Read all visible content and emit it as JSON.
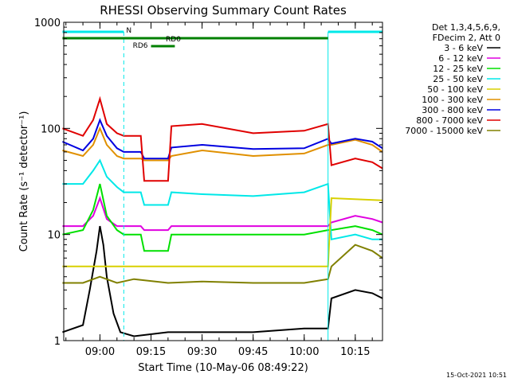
{
  "chart_data": {
    "type": "line",
    "title": "RHESSI Observing Summary Count Rates",
    "xlabel": "Start Time (10-May-06 08:49:22)",
    "ylabel": "Count Rate (s⁻¹ detector⁻¹)",
    "y_scale": "log",
    "ylim": [
      1,
      1000
    ],
    "xlim": [
      "08:49:22",
      "10:23:00"
    ],
    "x_ticks": [
      "09:00",
      "09:15",
      "09:30",
      "09:45",
      "10:00",
      "10:15"
    ],
    "y_ticks": [
      "1",
      "10",
      "100",
      "1000"
    ],
    "legend_header": [
      "Det 1,3,4,5,6,9,",
      "FDecim 2, Att 0"
    ],
    "legend_position": "right",
    "series": [
      {
        "name": "3 - 6 keV",
        "color": "#000000",
        "x": [
          "08:49",
          "08:55",
          "08:57",
          "08:59",
          "09:00",
          "09:01",
          "09:02",
          "09:04",
          "09:06",
          "09:10",
          "09:20",
          "09:30",
          "09:45",
          "10:00",
          "10:07",
          "10:08",
          "10:15",
          "10:20",
          "10:23"
        ],
        "y": [
          1.2,
          1.4,
          3.0,
          7.0,
          12,
          8.0,
          4.0,
          1.8,
          1.2,
          1.1,
          1.2,
          1.2,
          1.2,
          1.3,
          1.3,
          2.5,
          3.0,
          2.8,
          2.5
        ]
      },
      {
        "name": "6 - 12 keV",
        "color": "#e000e0",
        "x": [
          "08:49",
          "08:55",
          "08:58",
          "09:00",
          "09:02",
          "09:05",
          "09:07",
          "09:12",
          "09:13",
          "09:20",
          "09:21",
          "09:30",
          "09:45",
          "10:00",
          "10:07",
          "10:08",
          "10:15",
          "10:20",
          "10:23"
        ],
        "y": [
          12,
          12,
          15,
          22,
          14,
          12,
          12,
          12,
          11,
          11,
          12,
          12,
          12,
          12,
          12,
          13,
          15,
          14,
          13
        ]
      },
      {
        "name": "12 - 25 keV",
        "color": "#00e000",
        "x": [
          "08:49",
          "08:55",
          "08:58",
          "09:00",
          "09:02",
          "09:05",
          "09:07",
          "09:12",
          "09:13",
          "09:20",
          "09:21",
          "09:30",
          "09:45",
          "10:00",
          "10:07",
          "10:08",
          "10:15",
          "10:20",
          "10:23"
        ],
        "y": [
          10,
          11,
          17,
          30,
          15,
          11,
          10,
          10,
          7,
          7,
          10,
          10,
          10,
          10,
          11,
          11,
          12,
          11,
          10
        ]
      },
      {
        "name": "25 - 50 keV",
        "color": "#00e8e8",
        "x": [
          "08:49",
          "08:55",
          "08:58",
          "09:00",
          "09:02",
          "09:05",
          "09:07",
          "09:12",
          "09:13",
          "09:20",
          "09:21",
          "09:30",
          "09:45",
          "10:00",
          "10:07",
          "10:08",
          "10:15",
          "10:20",
          "10:23"
        ],
        "y": [
          30,
          30,
          40,
          50,
          35,
          28,
          25,
          25,
          19,
          19,
          25,
          24,
          23,
          25,
          30,
          9,
          10,
          9,
          9
        ]
      },
      {
        "name": "50 - 100 keV",
        "color": "#d8d000",
        "x": [
          "08:49",
          "08:58",
          "09:13",
          "09:20",
          "09:21",
          "10:07",
          "10:08",
          "10:23"
        ],
        "y": [
          5,
          5,
          5,
          5,
          5,
          5,
          22,
          21
        ]
      },
      {
        "name": "100 - 300 keV",
        "color": "#e09000",
        "x": [
          "08:49",
          "08:55",
          "08:58",
          "09:00",
          "09:02",
          "09:05",
          "09:07",
          "09:12",
          "09:13",
          "09:20",
          "09:21",
          "09:30",
          "09:45",
          "10:00",
          "10:07",
          "10:08",
          "10:15",
          "10:20",
          "10:23"
        ],
        "y": [
          62,
          55,
          70,
          100,
          70,
          55,
          52,
          52,
          50,
          50,
          55,
          62,
          55,
          58,
          70,
          70,
          78,
          70,
          60
        ]
      },
      {
        "name": "300 - 800 keV",
        "color": "#0000e0",
        "x": [
          "08:49",
          "08:55",
          "08:58",
          "09:00",
          "09:02",
          "09:05",
          "09:07",
          "09:12",
          "09:13",
          "09:20",
          "09:21",
          "09:30",
          "09:45",
          "10:00",
          "10:07",
          "10:08",
          "10:15",
          "10:20",
          "10:23"
        ],
        "y": [
          75,
          62,
          80,
          120,
          85,
          65,
          60,
          60,
          52,
          52,
          66,
          70,
          64,
          65,
          80,
          72,
          80,
          75,
          65
        ]
      },
      {
        "name": "800 - 7000 keV",
        "color": "#e00000",
        "x": [
          "08:49",
          "08:55",
          "08:58",
          "09:00",
          "09:02",
          "09:05",
          "09:07",
          "09:12",
          "09:13",
          "09:20",
          "09:21",
          "09:30",
          "09:45",
          "10:00",
          "10:07",
          "10:08",
          "10:15",
          "10:20",
          "10:23"
        ],
        "y": [
          100,
          85,
          120,
          190,
          110,
          90,
          85,
          85,
          32,
          32,
          105,
          110,
          90,
          95,
          110,
          45,
          52,
          48,
          42
        ]
      },
      {
        "name": "7000 - 15000 keV",
        "color": "#808000",
        "x": [
          "08:49",
          "08:55",
          "09:00",
          "09:05",
          "09:10",
          "09:20",
          "09:30",
          "09:45",
          "10:00",
          "10:07",
          "10:08",
          "10:15",
          "10:20",
          "10:23"
        ],
        "y": [
          3.5,
          3.5,
          4.0,
          3.5,
          3.8,
          3.5,
          3.6,
          3.5,
          3.5,
          3.8,
          5,
          8,
          7,
          6
        ]
      }
    ],
    "annotations": [
      {
        "label": "N",
        "color": "#00e8e8",
        "x_start": "08:49",
        "x_end": "09:07"
      },
      {
        "label": "",
        "color": "#00e8e8",
        "x_start": "10:07",
        "x_end": "10:23"
      },
      {
        "label": "RD0",
        "color": "#008000",
        "x_start": "08:49",
        "x_end": "10:07"
      },
      {
        "label": "RD6",
        "color": "#008000",
        "x_start": "09:15",
        "x_end": "09:22"
      }
    ],
    "grid": false
  },
  "footer_timestamp": "15-Oct-2021 10:51"
}
